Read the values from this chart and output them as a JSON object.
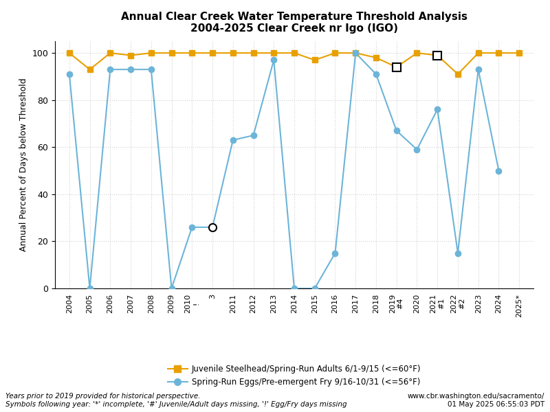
{
  "title_line1": "Annual Clear Creek Water Temperature Threshold Analysis",
  "title_line2": "2004-2025 Clear Creek nr Igo (IGO)",
  "ylabel": "Annual Percent of Days below Threshold",
  "x_labels": [
    "2004",
    "2005",
    "2006",
    "2007",
    "2008",
    "2009",
    "2010\n!",
    "3",
    "2011",
    "2012",
    "2013",
    "2014",
    "2015",
    "2016",
    "2017",
    "2018",
    "2019\n#4",
    "2020",
    "2021\n#1",
    "2022\n#2",
    "2023",
    "2024",
    "2025*"
  ],
  "x_positions": [
    0,
    1,
    2,
    3,
    4,
    5,
    6,
    7,
    8,
    9,
    10,
    11,
    12,
    13,
    14,
    15,
    16,
    17,
    18,
    19,
    20,
    21,
    22
  ],
  "juvenile_values": [
    100,
    93,
    100,
    99,
    100,
    100,
    100,
    100,
    100,
    100,
    100,
    100,
    97,
    100,
    100,
    98,
    94,
    100,
    99,
    91,
    100,
    100,
    100
  ],
  "juvenile_color": "#E8A000",
  "juvenile_label": "Juvenile Steelhead/Spring-Run Adults 6/1-9/15 (<=60°F)",
  "juvenile_hollow": [
    16,
    18
  ],
  "eggs_values": [
    91,
    0,
    93,
    93,
    93,
    0,
    26,
    26,
    63,
    65,
    97,
    0,
    0,
    15,
    100,
    91,
    67,
    59,
    76,
    15,
    93,
    50,
    null
  ],
  "eggs_color": "#6CB4D8",
  "eggs_label": "Spring-Run Eggs/Pre-emergent Fry 9/16-10/31 (<=56°F)",
  "eggs_hollow": [
    7
  ],
  "ylim": [
    0,
    105
  ],
  "yticks": [
    0,
    20,
    40,
    60,
    80,
    100
  ],
  "background_color": "#ffffff",
  "grid_color": "#d0d0d0",
  "footnote_left": "Years prior to 2019 provided for historical perspective.\nSymbols following year: '*' incomplete, '#' Juvenile/Adult days missing, '!' Egg/Fry days missing",
  "footnote_right": "www.cbr.washington.edu/sacramento/\n01 May 2025 06:55:03 PDT"
}
